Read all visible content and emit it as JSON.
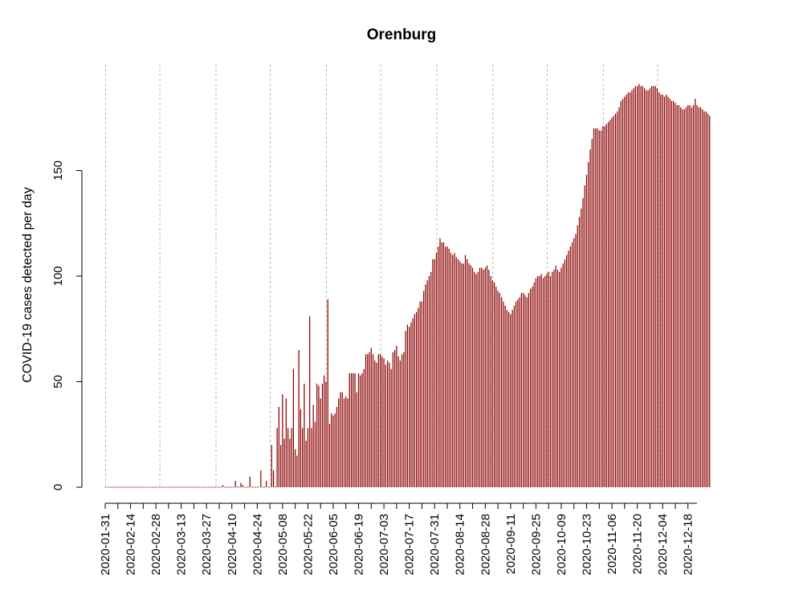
{
  "chart_data": {
    "type": "bar",
    "title": "Orenburg",
    "xlabel": "",
    "ylabel": "COVID-19 cases detected per day",
    "ylim": [
      -10,
      200
    ],
    "y_ticks": [
      0,
      50,
      100,
      150
    ],
    "x_date_start": "2020-01-31",
    "x_date_end": "2020-12-23",
    "x_tick_labels": [
      "2020-01-31",
      "2020-02-14",
      "2020-02-28",
      "2020-03-13",
      "2020-03-27",
      "2020-04-10",
      "2020-04-24",
      "2020-05-08",
      "2020-05-22",
      "2020-06-05",
      "2020-06-19",
      "2020-07-03",
      "2020-07-17",
      "2020-07-31",
      "2020-08-14",
      "2020-08-28",
      "2020-09-11",
      "2020-09-25",
      "2020-10-09",
      "2020-10-23",
      "2020-11-06",
      "2020-11-20",
      "2020-12-04",
      "2020-12-18"
    ],
    "grid_dates": [
      "2020-01-31",
      "2020-03-01",
      "2020-04-01",
      "2020-05-01",
      "2020-06-01",
      "2020-07-01",
      "2020-08-01",
      "2020-09-01",
      "2020-10-01",
      "2020-11-01",
      "2020-12-01"
    ],
    "grid": "vertical dashed at month starts",
    "bar_color": "#8b0000",
    "series": [
      {
        "values": [
          0,
          0,
          0,
          0,
          0,
          0,
          0,
          0,
          0,
          0,
          0,
          0,
          0,
          0,
          0,
          0,
          0,
          0,
          0,
          0,
          0,
          0,
          0,
          0,
          0,
          0,
          0,
          0,
          0,
          0,
          0,
          0,
          0,
          0,
          0,
          0,
          0,
          0,
          0,
          0,
          0,
          0,
          0,
          0,
          0,
          0,
          0,
          0,
          0,
          0,
          0,
          0,
          0,
          0,
          0,
          0,
          0,
          0,
          0,
          0,
          0,
          0,
          0,
          0,
          0,
          1,
          0,
          0,
          0,
          0,
          0,
          0,
          3,
          0,
          0,
          2,
          1,
          0,
          0,
          0,
          5,
          0,
          0,
          0,
          0,
          0,
          8,
          0,
          0,
          3,
          0,
          0,
          20,
          8,
          0,
          28,
          38,
          20,
          44,
          23,
          42,
          28,
          23,
          28,
          56,
          18,
          15,
          65,
          37,
          28,
          49,
          22,
          28,
          81,
          28,
          39,
          31,
          49,
          48,
          42,
          49,
          53,
          50,
          89,
          30,
          35,
          34,
          35,
          38,
          42,
          45,
          45,
          42,
          43,
          42,
          54,
          54,
          54,
          54,
          45,
          54,
          53,
          54,
          56,
          63,
          63,
          64,
          66,
          63,
          60,
          59,
          63,
          63,
          62,
          61,
          58,
          60,
          59,
          56,
          64,
          65,
          67,
          62,
          60,
          63,
          64,
          74,
          77,
          76,
          78,
          80,
          82,
          83,
          85,
          88,
          88,
          93,
          96,
          98,
          100,
          102,
          108,
          108,
          111,
          114,
          118,
          116,
          116,
          114,
          114,
          113,
          111,
          110,
          111,
          109,
          108,
          107,
          106,
          106,
          110,
          108,
          106,
          105,
          104,
          102,
          101,
          102,
          104,
          104,
          103,
          104,
          105,
          103,
          100,
          98,
          97,
          95,
          93,
          92,
          90,
          88,
          86,
          84,
          83,
          82,
          84,
          86,
          88,
          89,
          90,
          92,
          92,
          91,
          90,
          92,
          94,
          95,
          97,
          99,
          100,
          100,
          101,
          99,
          100,
          101,
          102,
          100,
          102,
          103,
          105,
          103,
          102,
          104,
          106,
          108,
          110,
          112,
          114,
          116,
          118,
          120,
          124,
          128,
          132,
          137,
          143,
          148,
          154,
          160,
          165,
          170,
          170,
          170,
          169,
          169,
          171,
          171,
          172,
          173,
          174,
          175,
          176,
          177,
          178,
          180,
          183,
          184,
          185,
          186,
          187,
          187,
          188,
          189,
          190,
          190,
          191,
          190,
          190,
          189,
          188,
          188,
          189,
          190,
          190,
          190,
          189,
          187,
          186,
          186,
          185,
          186,
          185,
          184,
          183,
          183,
          182,
          181,
          181,
          180,
          179,
          179,
          180,
          181,
          181,
          180,
          181,
          184,
          181,
          180,
          180,
          179,
          178,
          178,
          177,
          176
        ]
      }
    ]
  }
}
